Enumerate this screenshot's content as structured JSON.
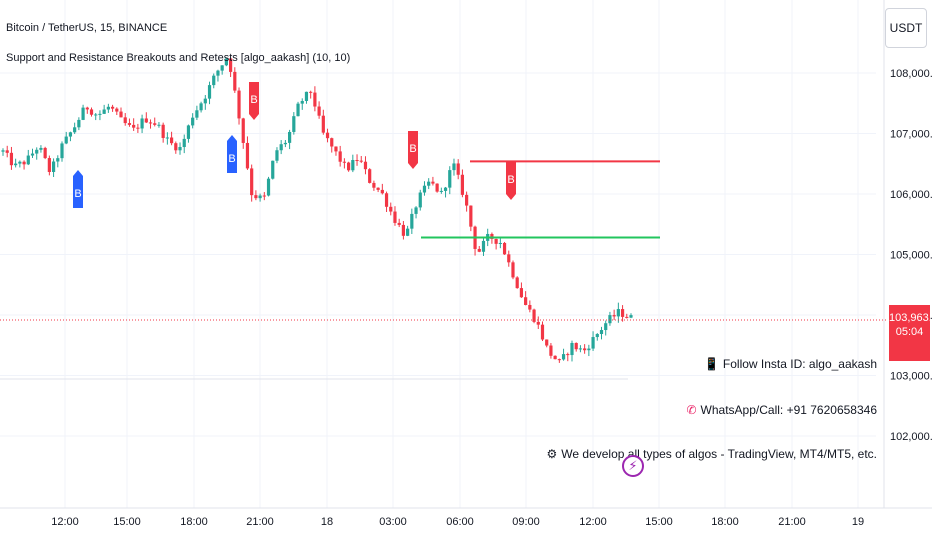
{
  "header": {
    "title": "Bitcoin / TetherUS, 15, BINANCE",
    "indicator": "Support and Resistance Breakouts and Retests [algo_aakash] (10, 10)"
  },
  "currency_button": "USDT",
  "current_price": {
    "value": "103,963.52",
    "countdown": "05:04"
  },
  "notes": [
    {
      "icon": "phone-icon",
      "text": "Follow Insta ID: algo_aakash"
    },
    {
      "icon": "telephone-icon",
      "text": "WhatsApp/Call: +91 7620658346"
    },
    {
      "icon": "robot-icon",
      "text": "We develop all types of algos - TradingView, MT4/MT5, etc."
    }
  ],
  "colors": {
    "up": "#26a69a",
    "down": "#f23645",
    "resistance": "#f23645",
    "support": "#22c55e",
    "buy": "#2962ff"
  },
  "chart_data": {
    "type": "candlestick",
    "symbol": "Bitcoin / TetherUS",
    "interval": "15",
    "exchange": "BINANCE",
    "y_ticks": [
      102000,
      103000,
      104000,
      105000,
      106000,
      107000,
      108000
    ],
    "y_tick_labels": [
      "102,000.00",
      "103,000.00",
      "104,000.00",
      "105,000.00",
      "106,000.00",
      "107,000.00",
      "108,000.00"
    ],
    "x_tick_labels": [
      "12:00",
      "15:00",
      "18:00",
      "21:00",
      "18",
      "03:00",
      "06:00",
      "09:00",
      "12:00",
      "15:00",
      "18:00",
      "21:00",
      "19"
    ],
    "path": [
      106700,
      106450,
      106550,
      106800,
      106350,
      106800,
      107100,
      107450,
      107300,
      107450,
      107200,
      107050,
      107250,
      107150,
      106850,
      106750,
      107300,
      107600,
      108000,
      108300,
      107200,
      106000,
      105900,
      106700,
      106900,
      107500,
      107700,
      107000,
      106700,
      106400,
      106600,
      106200,
      106000,
      105600,
      105300,
      105900,
      106200,
      106000,
      106500,
      105900,
      105000,
      105300,
      105200,
      104700,
      104200,
      103900,
      103400,
      103200,
      103500,
      103400,
      103650,
      103900,
      104050,
      103950
    ],
    "resistance_level": 106540,
    "support_level": 105280,
    "signals": [
      {
        "label": "B",
        "type": "buy"
      },
      {
        "label": "B",
        "type": "buy"
      },
      {
        "label": "B",
        "type": "sell"
      },
      {
        "label": "B",
        "type": "sell"
      },
      {
        "label": "B",
        "type": "sell"
      }
    ]
  }
}
